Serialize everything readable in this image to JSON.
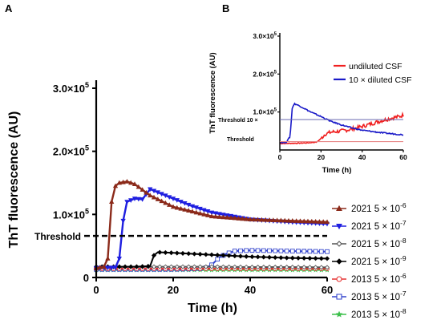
{
  "chart_data": [
    {
      "panel": "A",
      "type": "line",
      "xlabel": "Time (h)",
      "ylabel": "ThT fluorescence (AU)",
      "xlim": [
        0,
        60
      ],
      "ylim": [
        0,
        300000
      ],
      "x_ticks": [
        "0",
        "20",
        "40",
        "60"
      ],
      "y_ticks": [
        {
          "value": 0,
          "mantissa": "0",
          "exponent": ""
        },
        {
          "value": 100000,
          "mantissa": "1.0×10",
          "exponent": "5"
        },
        {
          "value": 200000,
          "mantissa": "2.0×10",
          "exponent": "5"
        },
        {
          "value": 300000,
          "mantissa": "3.0×10",
          "exponent": "5"
        }
      ],
      "threshold": {
        "label": "Threshold",
        "value": 66000
      },
      "legend_position": "right",
      "series": [
        {
          "name": "2021 5 × 10",
          "exponent": "-6",
          "color": "#8B2A1A",
          "marker": "triangle-up",
          "x": [
            0,
            2,
            3,
            4,
            5,
            6,
            8,
            10,
            14,
            20,
            30,
            40,
            50,
            60
          ],
          "y": [
            15000,
            17000,
            30000,
            120000,
            145000,
            150000,
            152000,
            148000,
            130000,
            112000,
            97000,
            92000,
            90000,
            88000
          ]
        },
        {
          "name": "2021 5 × 10",
          "exponent": "-7",
          "color": "#1F1FE0",
          "marker": "triangle-down",
          "x": [
            0,
            5,
            6,
            7,
            8,
            10,
            12,
            14,
            16,
            20,
            25,
            30,
            40,
            50,
            60
          ],
          "y": [
            15000,
            16000,
            30000,
            90000,
            120000,
            125000,
            124000,
            140000,
            135000,
            125000,
            113000,
            103000,
            92000,
            88000,
            85000
          ]
        },
        {
          "name": "2021 5 × 10",
          "exponent": "-8",
          "color": "#555555",
          "marker": "diamond-open",
          "x": [
            0,
            10,
            14,
            20,
            30,
            40,
            50,
            60
          ],
          "y": [
            17000,
            17000,
            17000,
            17000,
            17000,
            16500,
            16500,
            16000
          ]
        },
        {
          "name": "2021 5 × 10",
          "exponent": "-9",
          "color": "#000000",
          "marker": "diamond-filled",
          "x": [
            0,
            10,
            14,
            15,
            16,
            20,
            30,
            40,
            50,
            60
          ],
          "y": [
            17000,
            17000,
            18000,
            35000,
            40000,
            39000,
            36000,
            33000,
            31000,
            30000
          ]
        },
        {
          "name": "2013 5 × 10",
          "exponent": "-6",
          "color": "#E63232",
          "marker": "circle-open",
          "x": [
            0,
            10,
            20,
            30,
            40,
            50,
            60
          ],
          "y": [
            14000,
            14000,
            14000,
            14000,
            14000,
            14000,
            14000
          ]
        },
        {
          "name": "2013 5 × 10",
          "exponent": "-7",
          "color": "#3344CC",
          "marker": "square-open",
          "x": [
            0,
            10,
            20,
            28,
            30,
            32,
            34,
            36,
            40,
            50,
            60
          ],
          "y": [
            13000,
            13000,
            13000,
            14000,
            20000,
            32000,
            38000,
            42000,
            43000,
            42000,
            41000
          ]
        },
        {
          "name": "2013 5 × 10",
          "exponent": "-8",
          "color": "#3BBF4A",
          "marker": "star",
          "x": [
            0,
            10,
            20,
            30,
            40,
            50,
            60
          ],
          "y": [
            12000,
            12000,
            12000,
            12000,
            12000,
            12000,
            12000
          ]
        }
      ]
    },
    {
      "panel": "B",
      "type": "line",
      "xlabel": "Time (h)",
      "ylabel": "ThT fluorescence (AU)",
      "xlim": [
        0,
        60
      ],
      "ylim": [
        0,
        300000
      ],
      "x_ticks": [
        "0",
        "20",
        "40",
        "60"
      ],
      "y_ticks": [
        {
          "value": 100000,
          "mantissa": "1.0×10",
          "exponent": "5"
        },
        {
          "value": 200000,
          "mantissa": "2.0×10",
          "exponent": "5"
        },
        {
          "value": 300000,
          "mantissa": "3.0×10",
          "exponent": "5"
        }
      ],
      "thresholds": [
        {
          "label": "Threshold 10 ×",
          "value": 80000,
          "color": "#6A6AB0"
        },
        {
          "label": "Threshold",
          "value": 22000,
          "color": "#E88888"
        }
      ],
      "legend_position": "right",
      "series": [
        {
          "name": "undiluted CSF",
          "color": "#F02020",
          "x": [
            0,
            2,
            5,
            10,
            14,
            18,
            20,
            22,
            25,
            30,
            35,
            40,
            45,
            50,
            55,
            58,
            60
          ],
          "y": [
            17000,
            17000,
            17500,
            18000,
            19000,
            21000,
            30000,
            42000,
            47000,
            50000,
            55000,
            62000,
            70000,
            78000,
            85000,
            88000,
            92000
          ]
        },
        {
          "name": "10 × diluted CSF",
          "color": "#1A1AC8",
          "x": [
            0,
            3,
            5,
            6,
            7,
            8,
            10,
            15,
            20,
            25,
            30,
            35,
            40,
            50,
            60
          ],
          "y": [
            20000,
            20000,
            35000,
            110000,
            122000,
            120000,
            115000,
            100000,
            88000,
            75000,
            66000,
            58000,
            52000,
            45000,
            40000
          ]
        }
      ]
    }
  ]
}
